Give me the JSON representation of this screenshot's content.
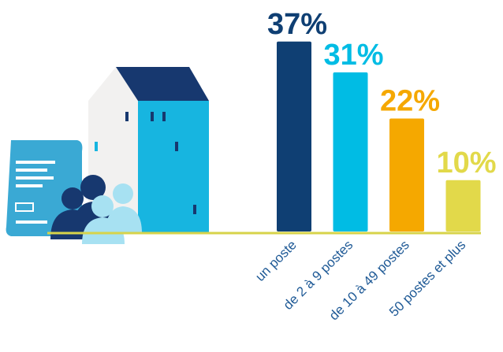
{
  "chart_data": {
    "type": "bar",
    "categories": [
      "un poste",
      "de 2 à 9 postes",
      "de 10 à 49 postes",
      "50 postes et plus"
    ],
    "values": [
      37,
      31,
      22,
      10
    ],
    "value_labels": [
      "37%",
      "31%",
      "22%",
      "10%"
    ],
    "colors": [
      "#0f3f73",
      "#00bce4",
      "#f5a800",
      "#e2d94a"
    ]
  }
}
